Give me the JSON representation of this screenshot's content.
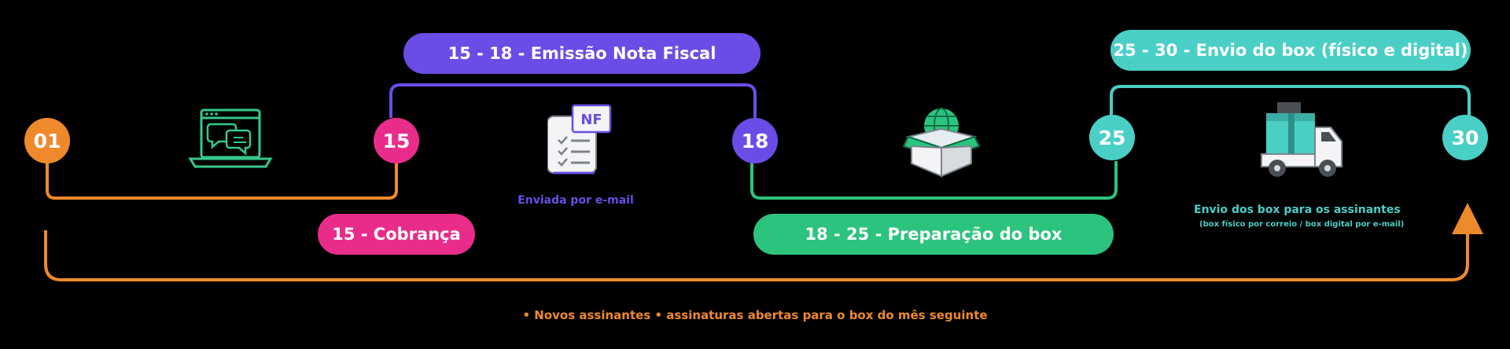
{
  "colors": {
    "orange": "#EE8A2C",
    "pink": "#E92C8A",
    "purple": "#6C4CE6",
    "green": "#2CC37E",
    "teal": "#4ACFC6",
    "icon_green": "#35C98A",
    "icon_purple": "#6C4CE6",
    "icon_gray": "#7C838C"
  },
  "nodes": [
    {
      "id": "01",
      "label": "01",
      "color": "orange"
    },
    {
      "id": "15",
      "label": "15",
      "color": "pink"
    },
    {
      "id": "18",
      "label": "18",
      "color": "purple"
    },
    {
      "id": "25",
      "label": "25",
      "color": "teal"
    },
    {
      "id": "30",
      "label": "30",
      "color": "teal"
    }
  ],
  "phases": {
    "emissao": "15 - 18 - Emissão Nota Fiscal",
    "cobranca": "15 - Cobrança",
    "preparacao": "18 - 25 - Preparação do box",
    "envio": "25 - 30 - Envio do box (físico e digital)"
  },
  "icons": {
    "laptop": "laptop-chat-icon",
    "invoice": "invoice-nf-icon",
    "invoice_text": "NF",
    "box": "box-globe-icon",
    "truck": "delivery-truck-icon"
  },
  "captions": {
    "nf": "Enviada por e-mail",
    "envio_line1": "Envio dos box para os assinantes",
    "envio_line2": "(box físico por correio / box digital por e-mail)",
    "footer": "• Novos assinantes • assinaturas abertas para o box do mês seguinte"
  }
}
